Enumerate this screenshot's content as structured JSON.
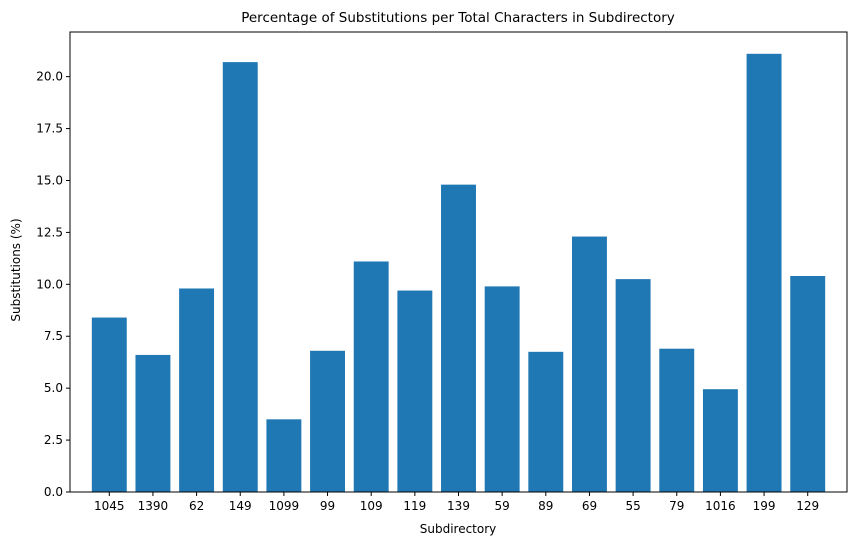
{
  "chart_data": {
    "type": "bar",
    "title": "Percentage of Substitutions per Total Characters in Subdirectory",
    "xlabel": "Subdirectory",
    "ylabel": "Substitutions (%)",
    "categories": [
      "1045",
      "1390",
      "62",
      "149",
      "1099",
      "99",
      "109",
      "119",
      "139",
      "59",
      "89",
      "69",
      "55",
      "79",
      "1016",
      "199",
      "129"
    ],
    "values": [
      8.4,
      6.6,
      9.8,
      20.7,
      3.5,
      6.8,
      11.1,
      9.7,
      14.8,
      9.9,
      6.75,
      12.3,
      10.25,
      6.9,
      4.95,
      21.1,
      10.4
    ],
    "ylim": [
      0,
      22.15
    ],
    "yticks": [
      0.0,
      2.5,
      5.0,
      7.5,
      10.0,
      12.5,
      15.0,
      17.5,
      20.0
    ],
    "ytick_labels": [
      "0.0",
      "2.5",
      "5.0",
      "7.5",
      "10.0",
      "12.5",
      "15.0",
      "17.5",
      "20.0"
    ],
    "bar_color": "#1f77b4",
    "grid": false,
    "legend": "none"
  }
}
